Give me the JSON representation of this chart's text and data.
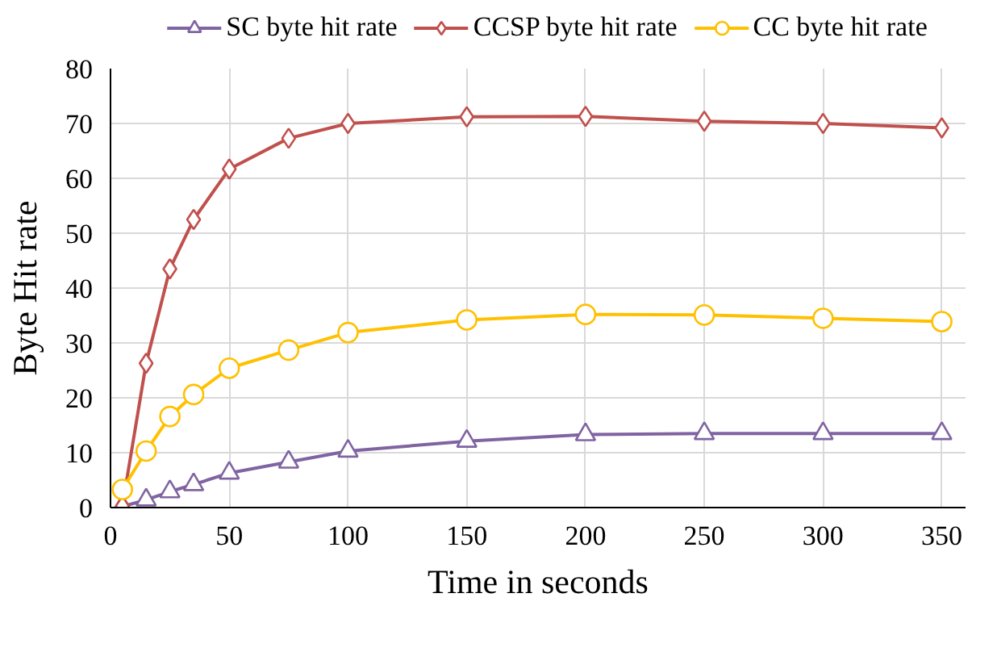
{
  "chart_data": {
    "type": "line",
    "xlabel": "Time in seconds",
    "ylabel": "Byte Hit rate",
    "x": [
      5,
      15,
      25,
      35,
      50,
      75,
      100,
      150,
      200,
      250,
      300,
      350
    ],
    "series": [
      {
        "name": "SC byte hit rate",
        "color": "#8064a2",
        "marker": "triangle",
        "values": [
          0.2,
          1.4,
          2.9,
          4.2,
          6.3,
          8.3,
          10.3,
          12.1,
          13.3,
          13.5,
          13.5,
          13.5
        ]
      },
      {
        "name": "CCSP byte hit rate",
        "color": "#c0504d",
        "marker": "diamond",
        "values": [
          0.3,
          26.3,
          43.5,
          52.5,
          61.7,
          67.3,
          70,
          71.2,
          71.3,
          70.4,
          70,
          69.2
        ]
      },
      {
        "name": "CC byte hit rate",
        "color": "#ffc000",
        "marker": "circle",
        "values": [
          3.3,
          10.3,
          16.6,
          20.6,
          25.4,
          28.7,
          31.9,
          34.2,
          35.2,
          35.1,
          34.5,
          33.9
        ]
      }
    ],
    "xlim": [
      0,
      360
    ],
    "xticks": [
      0,
      50,
      100,
      150,
      200,
      250,
      300,
      350
    ],
    "ylim": [
      0,
      80
    ],
    "yticks": [
      0,
      10,
      20,
      30,
      40,
      50,
      60,
      70,
      80
    ],
    "grid": true,
    "legend": "top",
    "line_style": "solid"
  }
}
